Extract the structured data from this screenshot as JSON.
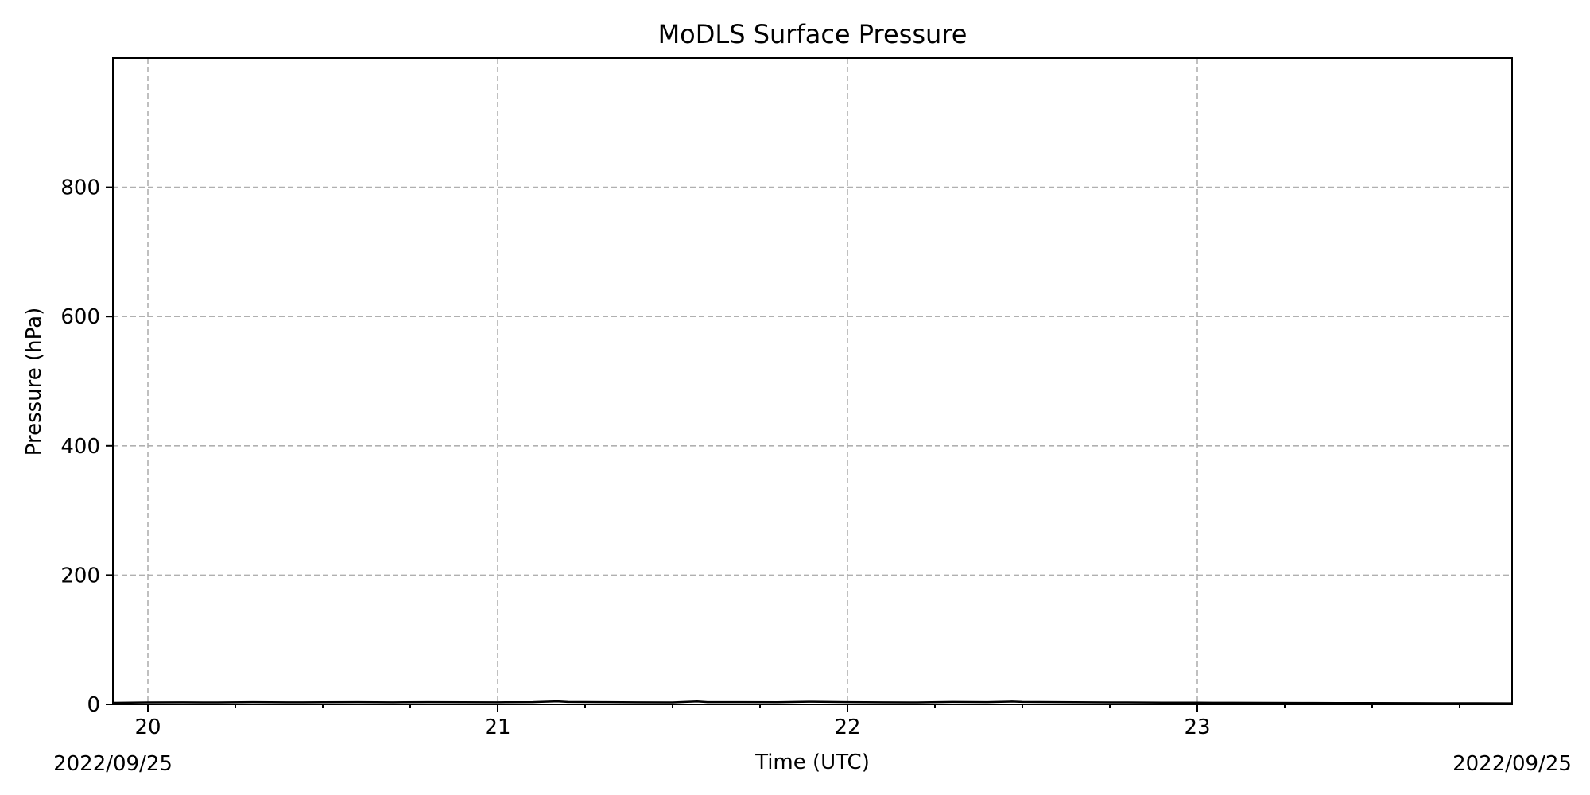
{
  "chart_data": {
    "type": "line",
    "title": "MoDLS Surface Pressure",
    "xlabel": "Time (UTC)",
    "ylabel": "Pressure (hPa)",
    "date_left": "2022/09/25",
    "date_right": "2022/09/25",
    "xlim": [
      19.9,
      23.9
    ],
    "ylim": [
      0,
      1000
    ],
    "grid": true,
    "x_major_ticks": [
      {
        "value": 20,
        "label": "20"
      },
      {
        "value": 21,
        "label": "21"
      },
      {
        "value": 22,
        "label": "22"
      },
      {
        "value": 23,
        "label": "23"
      }
    ],
    "x_minor_step": 0.25,
    "y_ticks": [
      {
        "value": 0,
        "label": "0"
      },
      {
        "value": 200,
        "label": "200"
      },
      {
        "value": 400,
        "label": "400"
      },
      {
        "value": 600,
        "label": "600"
      },
      {
        "value": 800,
        "label": "800"
      }
    ],
    "series": [
      {
        "color": "#000000",
        "x": [
          19.9,
          20.0,
          20.1,
          20.2,
          20.3,
          20.4,
          20.5,
          20.6,
          20.7,
          20.8,
          20.9,
          21.0,
          21.1,
          21.17,
          21.2,
          21.3,
          21.4,
          21.5,
          21.57,
          21.6,
          21.7,
          21.8,
          21.9,
          22.0,
          22.1,
          22.2,
          22.3,
          22.4,
          22.47,
          22.5,
          22.6,
          22.7,
          22.8,
          22.9,
          23.0,
          23.1,
          23.2,
          23.3,
          23.4,
          23.5,
          23.6,
          23.7,
          23.8,
          23.9
        ],
        "y": [
          2.5,
          3.0,
          3.2,
          3.0,
          3.5,
          3.2,
          3.4,
          3.6,
          3.3,
          3.6,
          3.4,
          3.3,
          3.5,
          4.8,
          3.8,
          3.6,
          3.3,
          3.0,
          4.6,
          3.5,
          3.6,
          3.4,
          4.2,
          3.5,
          3.3,
          3.0,
          3.8,
          3.6,
          4.4,
          3.9,
          3.5,
          3.3,
          3.0,
          2.8,
          2.7,
          2.6,
          2.4,
          2.3,
          2.2,
          2.1,
          2.0,
          1.9,
          1.8,
          1.7
        ]
      }
    ]
  }
}
